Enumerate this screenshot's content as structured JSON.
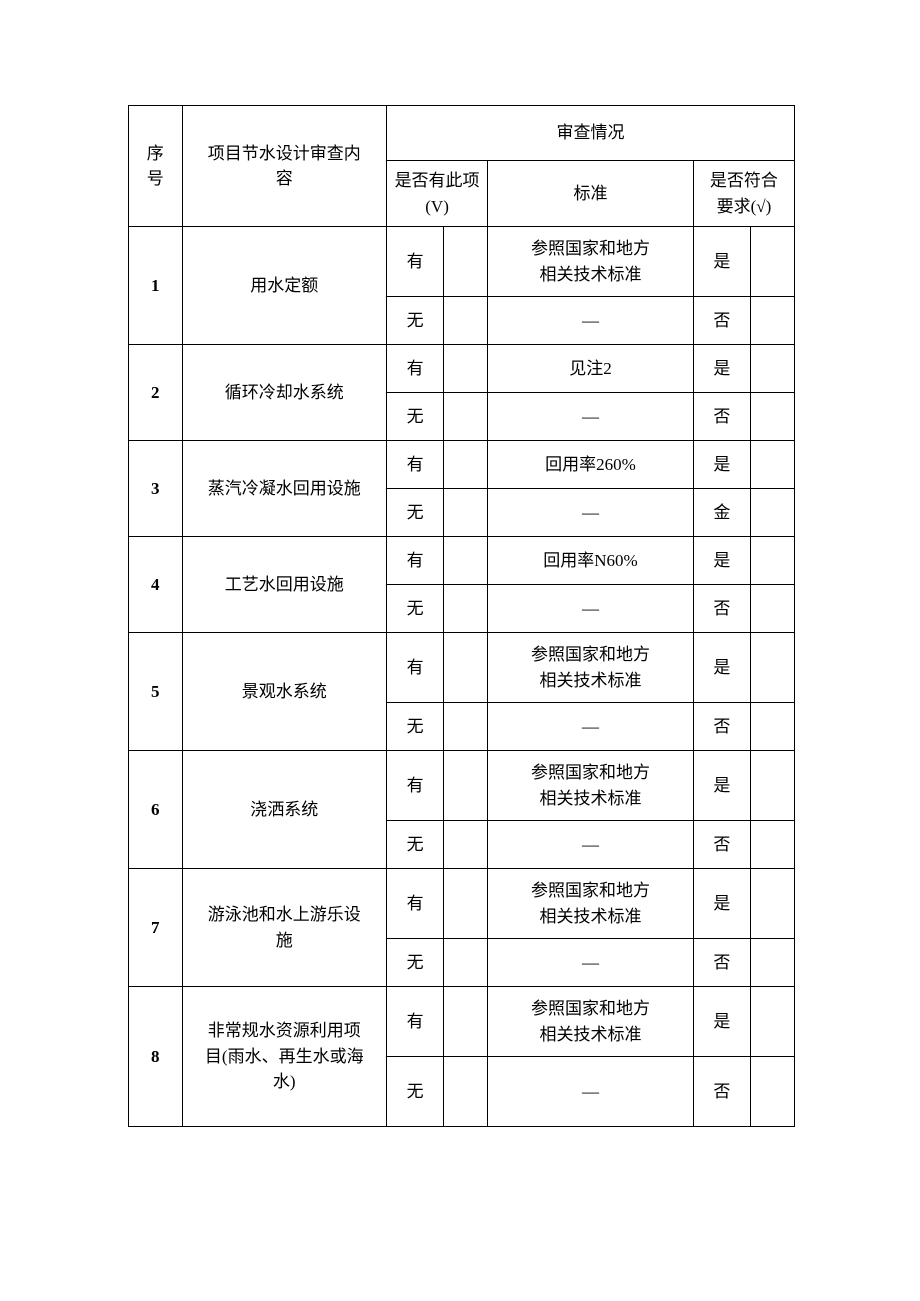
{
  "header": {
    "seq": "序\n号",
    "content": "项目节水设计审查内\n容",
    "review": "审查情况",
    "has_item": "是否有此项\n(V)",
    "standard": "标准",
    "meets_req": "是否符合\n要求(√)"
  },
  "labels": {
    "you": "有",
    "wu": "无",
    "shi": "是",
    "fou": "否",
    "jin": "金",
    "dash": "—"
  },
  "rows": [
    {
      "seq": "1",
      "content": "用水定额",
      "std_you": "参照国家和地方\n相关技术标准",
      "std_wu": "—",
      "res_you": "是",
      "res_wu": "否"
    },
    {
      "seq": "2",
      "content": "循环冷却水系统",
      "std_you": "见注2",
      "std_wu": "—",
      "res_you": "是",
      "res_wu": "否"
    },
    {
      "seq": "3",
      "content": "蒸汽冷凝水回用设施",
      "std_you": "回用率260%",
      "std_wu": "—",
      "res_you": "是",
      "res_wu": "金"
    },
    {
      "seq": "4",
      "content": "工艺水回用设施",
      "std_you": "回用率N60%",
      "std_wu": "—",
      "res_you": "是",
      "res_wu": "否"
    },
    {
      "seq": "5",
      "content": "景观水系统",
      "std_you": "参照国家和地方\n相关技术标准",
      "std_wu": "—",
      "res_you": "是",
      "res_wu": "否"
    },
    {
      "seq": "6",
      "content": "浇洒系统",
      "std_you": "参照国家和地方\n相关技术标准",
      "std_wu": "—",
      "res_you": "是",
      "res_wu": "否"
    },
    {
      "seq": "7",
      "content": "游泳池和水上游乐设\n施",
      "std_you": "参照国家和地方\n相关技术标准",
      "std_wu": "—",
      "res_you": "是",
      "res_wu": "否"
    },
    {
      "seq": "8",
      "content": "非常规水资源利用项\n目(雨水、再生水或海\n水)",
      "std_you": "参照国家和地方\n相关技术标准",
      "std_wu": "—",
      "res_you": "是",
      "res_wu": "否"
    }
  ],
  "layout": {
    "tall_std": [
      0,
      4,
      5,
      6,
      7
    ],
    "tall_wu": [
      7
    ],
    "font_size": 17,
    "border_color": "#000000",
    "background": "#ffffff"
  }
}
